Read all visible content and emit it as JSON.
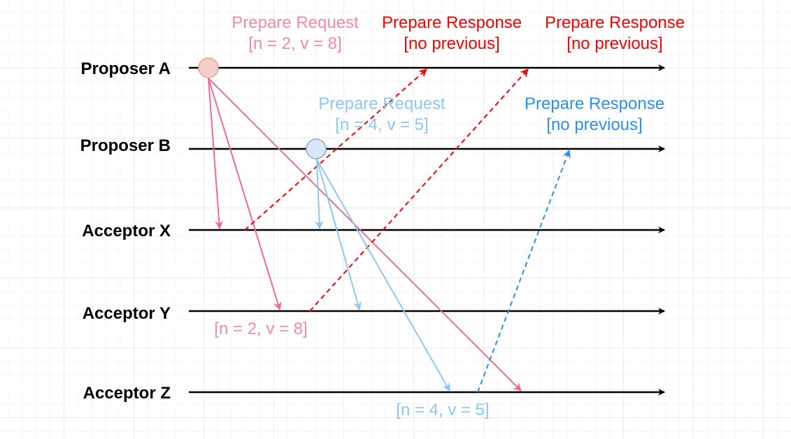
{
  "colors": {
    "timeline": "#000000",
    "proposer_a_request": "#f06c8a",
    "proposer_a_response": "#ff0000",
    "proposer_b_request": "#8ec7f5",
    "proposer_b_response": "#2d8ff0",
    "node_a_fill": "#f8cecc",
    "node_a_stroke": "#e8a09a",
    "node_b_fill": "#dae8fc",
    "node_b_stroke": "#8aa8d0"
  },
  "lanes": [
    {
      "id": "proposer-a",
      "label": "Proposer A"
    },
    {
      "id": "proposer-b",
      "label": "Proposer B"
    },
    {
      "id": "acceptor-x",
      "label": "Acceptor X"
    },
    {
      "id": "acceptor-y",
      "label": "Acceptor Y"
    },
    {
      "id": "acceptor-z",
      "label": "Acceptor Z"
    }
  ],
  "labels": {
    "a_request_title": "Prepare Request",
    "a_request_value": "[n = 2, v = 8]",
    "a_response1_title": "Prepare Response",
    "a_response1_value": "[no previous]",
    "a_response2_title": "Prepare Response",
    "a_response2_value": "[no previous]",
    "b_request_title": "Prepare Request",
    "b_request_value": "[n = 4, v = 5]",
    "b_response_title": "Prepare Response",
    "b_response_value": "[no previous]",
    "acceptor_y_value": "[n = 2, v = 8]",
    "acceptor_z_value": "[n = 4, v = 5]"
  }
}
